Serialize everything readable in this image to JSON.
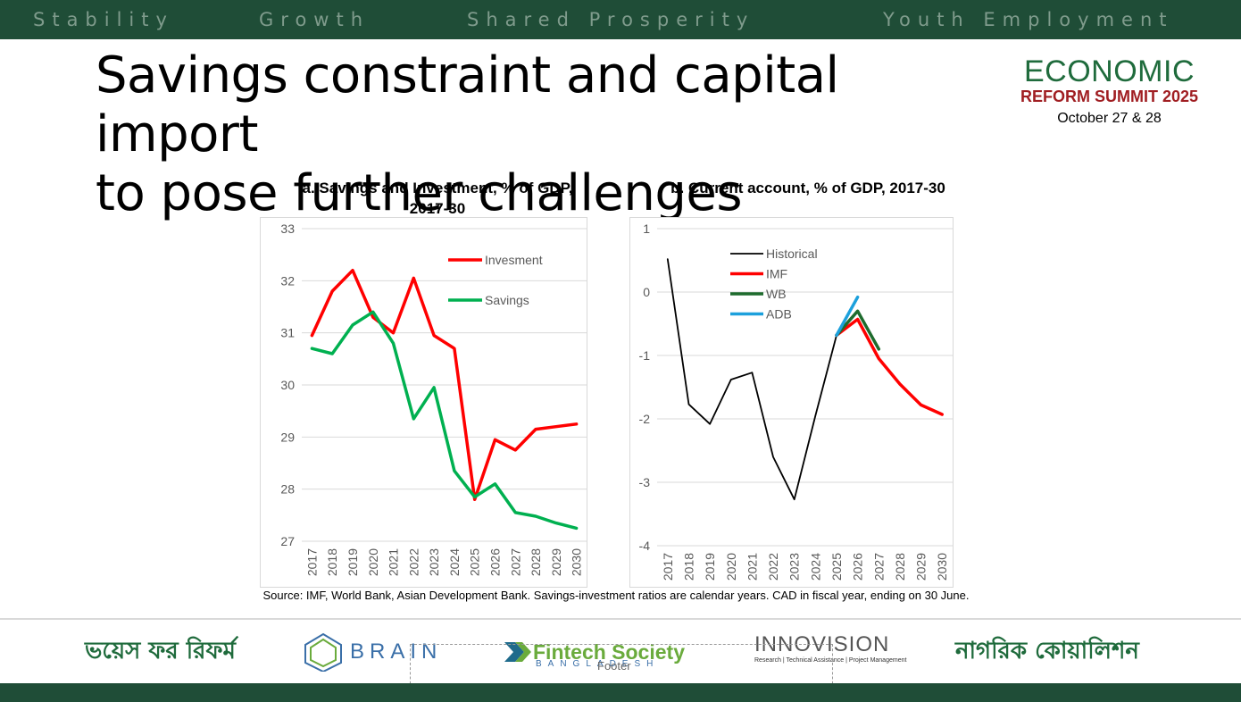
{
  "header": {
    "pillars": [
      "Stability",
      "Growth",
      "Shared Prosperity",
      "Youth Employment"
    ]
  },
  "slide": {
    "title_line1": "Savings constraint and capital import",
    "title_line2": "to pose further challenges",
    "source": "Source: IMF, World Bank, Asian Development Bank. Savings-investment ratios are calendar years. CAD in fiscal year, ending on 30 June."
  },
  "event_logo": {
    "line1": "ECONOMIC",
    "line2": "REFORM SUMMIT 2025",
    "date": "October 27 & 28"
  },
  "footer": {
    "placeholder": "Footer",
    "sponsors": {
      "voice": "ভয়েস ফর রিফর্ম",
      "brain": "BRAIN",
      "fintech": "Fintech Society",
      "fintech_sub": "BANGLADESH",
      "innovision": "INNOVISION",
      "innovision_sub": "Research | Technical Assistance | Project Management",
      "nagorik": "নাগরিক কোয়ালিশন"
    }
  },
  "colors": {
    "brand_green": "#1f4d37",
    "investment": "#ff0000",
    "savings": "#00b050",
    "historical": "#000000",
    "imf": "#ff0000",
    "wb": "#1e6b2d",
    "adb": "#1ca0dc"
  },
  "chart_data": [
    {
      "type": "line",
      "title_line1": "a.   Savings and Investment, % of GDP,",
      "title_line2": "2017-30",
      "x": [
        "2017",
        "2018",
        "2019",
        "2020",
        "2021",
        "2022",
        "2023",
        "2024",
        "2025",
        "2026",
        "2027",
        "2028",
        "2029",
        "2030"
      ],
      "ylim": [
        27,
        33
      ],
      "yticks": [
        27,
        28,
        29,
        30,
        31,
        32,
        33
      ],
      "grid": true,
      "legend": "top-right",
      "series": [
        {
          "name": "Invesment",
          "color": "#ff0000",
          "values": [
            30.95,
            31.8,
            32.2,
            31.3,
            31.0,
            32.05,
            30.95,
            30.7,
            27.8,
            28.95,
            28.75,
            29.15,
            29.2,
            29.25
          ]
        },
        {
          "name": "Savings",
          "color": "#00b050",
          "values": [
            30.7,
            30.6,
            31.15,
            31.4,
            30.8,
            29.35,
            29.95,
            28.35,
            27.85,
            28.1,
            27.55,
            27.48,
            27.35,
            27.25
          ]
        }
      ]
    },
    {
      "type": "line",
      "title": "b.   Current account, % of GDP, 2017-30",
      "x": [
        "2017",
        "2018",
        "2019",
        "2020",
        "2021",
        "2022",
        "2023",
        "2024",
        "2025",
        "2026",
        "2027",
        "2028",
        "2029",
        "2030"
      ],
      "ylim": [
        -4,
        1
      ],
      "yticks": [
        1,
        0,
        -1,
        -2,
        -3,
        -4
      ],
      "grid": true,
      "legend": "top-left",
      "series": [
        {
          "name": "Historical",
          "color": "#000000",
          "values": [
            0.52,
            -1.77,
            -2.08,
            -1.38,
            -1.27,
            -2.6,
            -3.27,
            -1.95,
            -0.68,
            null,
            null,
            null,
            null,
            null
          ]
        },
        {
          "name": "IMF",
          "color": "#ff0000",
          "values": [
            null,
            null,
            null,
            null,
            null,
            null,
            null,
            null,
            -0.68,
            -0.43,
            -1.05,
            -1.45,
            -1.78,
            -1.93
          ]
        },
        {
          "name": "WB",
          "color": "#1e6b2d",
          "values": [
            null,
            null,
            null,
            null,
            null,
            null,
            null,
            null,
            -0.68,
            -0.3,
            -0.9,
            null,
            null,
            null
          ]
        },
        {
          "name": "ADB",
          "color": "#1ca0dc",
          "values": [
            null,
            null,
            null,
            null,
            null,
            null,
            null,
            null,
            -0.68,
            -0.08,
            null,
            null,
            null,
            null
          ]
        }
      ]
    }
  ]
}
